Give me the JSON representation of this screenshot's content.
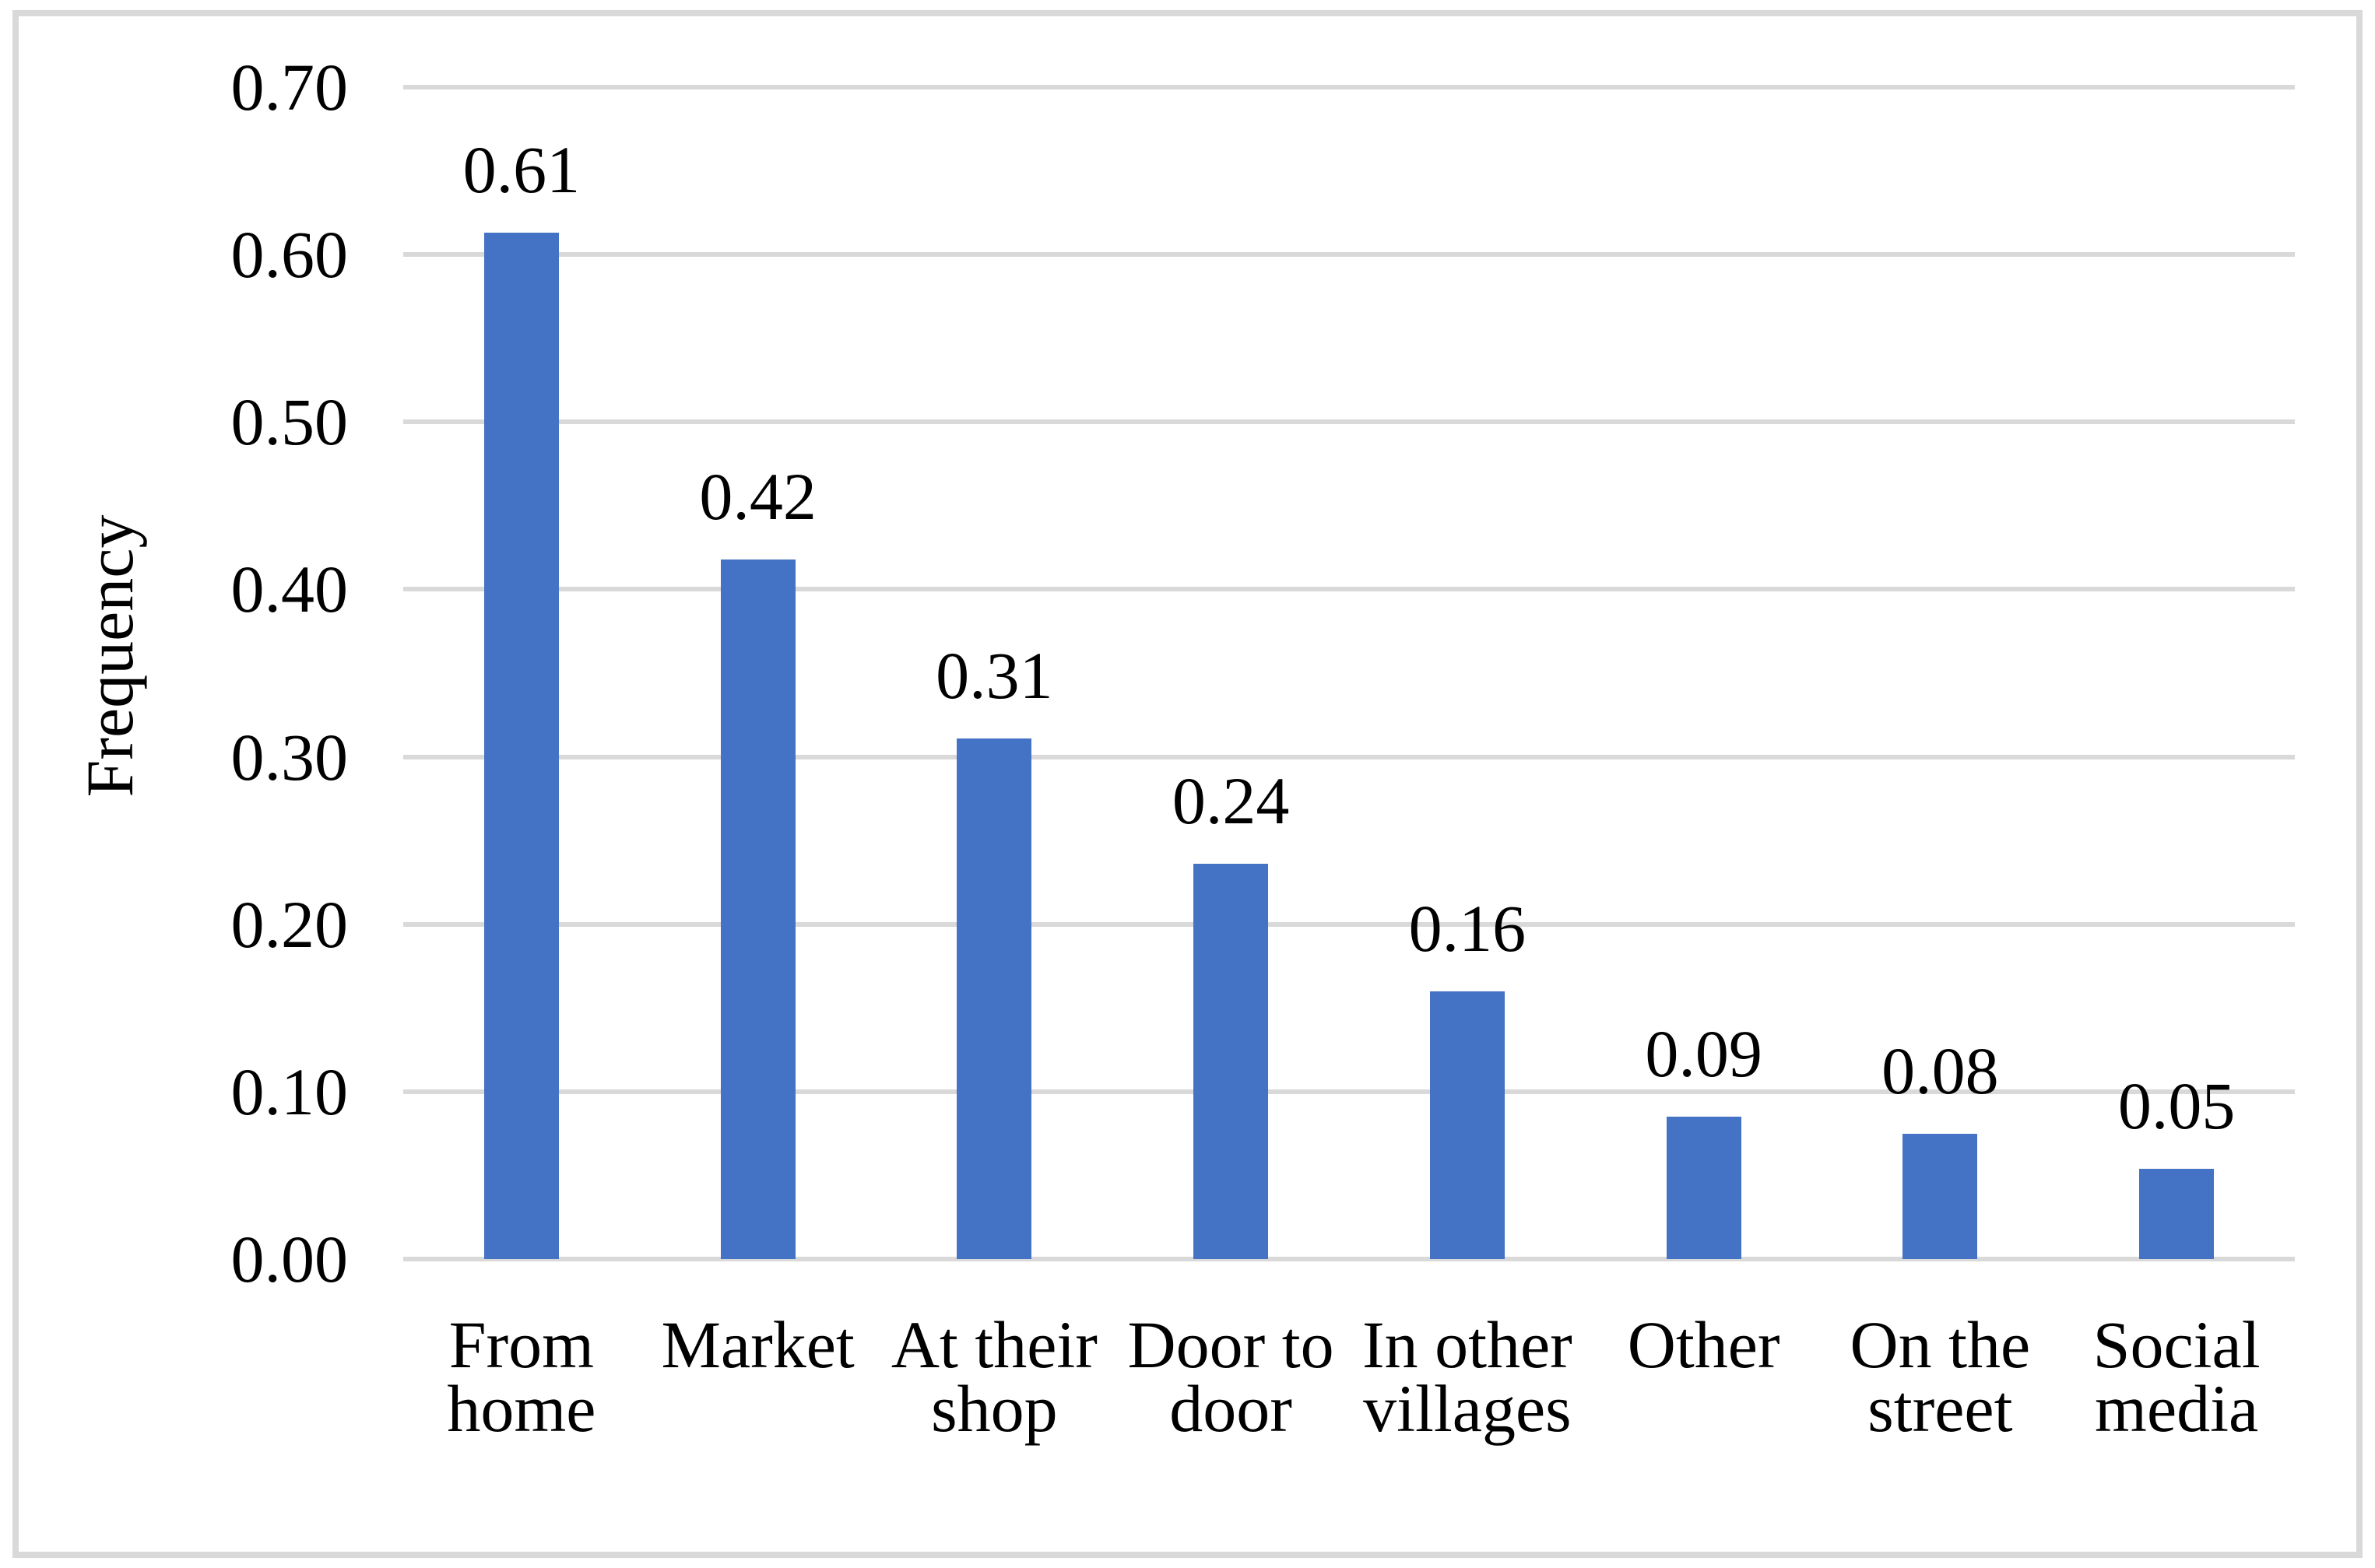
{
  "chart_data": {
    "type": "bar",
    "title": "",
    "xlabel": "",
    "ylabel": "Frequency",
    "categories": [
      "From home",
      "Market",
      "At their shop",
      "Door to door",
      "In other villages",
      "Other",
      "On the street",
      "Social media"
    ],
    "category_lines": [
      [
        "From",
        "home"
      ],
      [
        "Market"
      ],
      [
        "At their",
        "shop"
      ],
      [
        "Door to",
        "door"
      ],
      [
        "In other",
        "villages"
      ],
      [
        "Other"
      ],
      [
        "On the",
        "street"
      ],
      [
        "Social",
        "media"
      ]
    ],
    "values": [
      0.61,
      0.42,
      0.31,
      0.24,
      0.16,
      0.09,
      0.08,
      0.05
    ],
    "data_labels": [
      "0.61",
      "0.42",
      "0.31",
      "0.24",
      "0.16",
      "0.09",
      "0.08",
      "0.05"
    ],
    "bar_fractions": [
      0.613,
      0.418,
      0.311,
      0.236,
      0.16,
      0.085,
      0.075,
      0.054
    ],
    "yticks": [
      "0.00",
      "0.10",
      "0.20",
      "0.30",
      "0.40",
      "0.50",
      "0.60",
      "0.70"
    ],
    "ytick_values": [
      0,
      0.1,
      0.2,
      0.3,
      0.4,
      0.5,
      0.6,
      0.7
    ],
    "ylim": [
      0,
      0.7
    ],
    "grid": true,
    "legend": false,
    "colors": {
      "bar": "#4472C4",
      "gridline": "#D9D9D9",
      "frame_border": "#D9D9D9",
      "text": "#000000",
      "background": "#FFFFFF"
    }
  }
}
